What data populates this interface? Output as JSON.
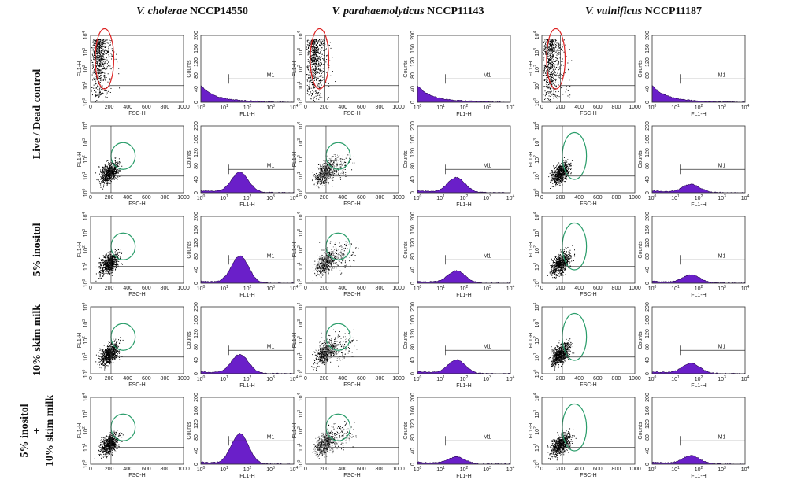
{
  "columns": [
    {
      "species": "V. cholerae",
      "strain": "NCCP14550"
    },
    {
      "species": "V. parahaemolyticus",
      "strain": "NCCP11143"
    },
    {
      "species": "V. vulnificus",
      "strain": "NCCP11187"
    }
  ],
  "row_labels": [
    [
      "Live / Dead control"
    ],
    [
      "5% inositol"
    ],
    [
      "10% skim milk"
    ],
    [
      "5% inositol",
      "+",
      "10% skim milk"
    ]
  ],
  "scatter_axes": {
    "x_label": "FSC-H",
    "y_label": "FL1-H",
    "x_ticks": [
      "0",
      "200",
      "400",
      "600",
      "800",
      "1000"
    ],
    "log_base": "10",
    "log_exponents": [
      "0",
      "1",
      "2",
      "3",
      "4"
    ]
  },
  "histogram_axes": {
    "x_label": "FL1-H",
    "y_label": "Counts",
    "y_ticks": [
      "0",
      "40",
      "80",
      "120",
      "160",
      "200"
    ],
    "gate": "M1"
  }
}
